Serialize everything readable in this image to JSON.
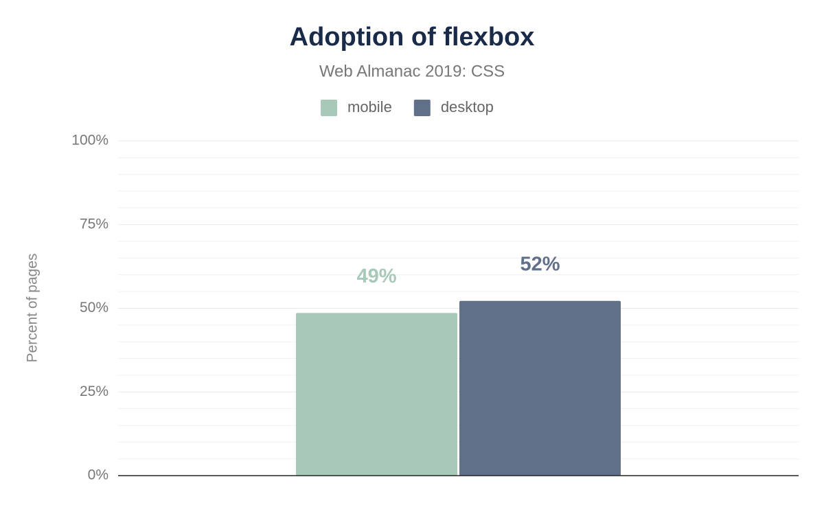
{
  "chart_data": {
    "type": "bar",
    "title": "Adoption of flexbox",
    "subtitle": "Web Almanac 2019: CSS",
    "y_label": "Percent of pages",
    "categories": [
      null
    ],
    "series": [
      {
        "name": "mobile",
        "color": "#a8c8b8",
        "values": [
          48.6
        ],
        "value_labels": [
          "49%"
        ]
      },
      {
        "name": "desktop",
        "color": "#607089",
        "values": [
          52.2
        ],
        "value_labels": [
          "52%"
        ]
      }
    ],
    "ylim": [
      0,
      100
    ],
    "yticks": [
      {
        "value": 0,
        "label": "0%"
      },
      {
        "value": 25,
        "label": "25%"
      },
      {
        "value": 50,
        "label": "50%"
      },
      {
        "value": 75,
        "label": "75%"
      },
      {
        "value": 100,
        "label": "100%"
      }
    ],
    "minor_yticks": [
      5,
      10,
      15,
      20,
      30,
      35,
      40,
      45,
      55,
      60,
      65,
      70,
      80,
      85,
      90,
      95
    ],
    "grid": true,
    "legend": "top"
  }
}
